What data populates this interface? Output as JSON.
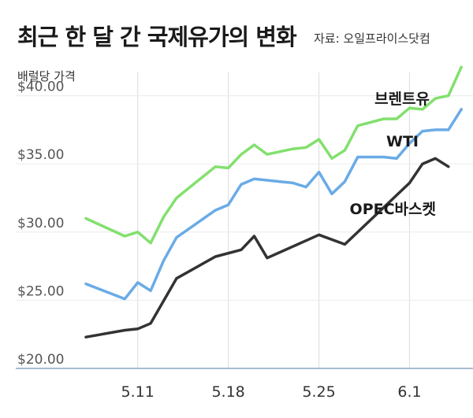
{
  "header": {
    "title": "최근 한 달 간 국제유가의 변화",
    "source": "자료: 오일프라이스닷컴",
    "unit": "배럴당 가격"
  },
  "chart_data": {
    "type": "line",
    "title": "최근 한 달 간 국제유가의 변화",
    "ylabel": "배럴당 가격",
    "ylim": [
      20,
      42
    ],
    "yticks": [
      20,
      25,
      30,
      35,
      40
    ],
    "ytick_labels": [
      "$20.00",
      "$25.00",
      "$30.00",
      "$35.00",
      "$40.00"
    ],
    "xlim": [
      0,
      29.5
    ],
    "xtick_positions": [
      4,
      11,
      18,
      25
    ],
    "xtick_labels": [
      "5.11",
      "5.18",
      "5.25",
      "6.1"
    ],
    "grid": "vertical",
    "colors": {
      "브렌트유": "#82e06e",
      "WTI": "#6aabe6",
      "OPEC바스켓": "#333333"
    },
    "series": [
      {
        "name": "브렌트유",
        "x": [
          0,
          3,
          4,
          5,
          6,
          7,
          10,
          11,
          12,
          13,
          14,
          15,
          16,
          17,
          18,
          19,
          20,
          21,
          23,
          24,
          25,
          26,
          27,
          28,
          29
        ],
        "y": [
          31.0,
          29.7,
          30.0,
          29.2,
          31.1,
          32.5,
          34.8,
          34.7,
          35.7,
          36.4,
          35.7,
          35.9,
          36.1,
          36.2,
          36.8,
          35.4,
          36.0,
          37.8,
          38.3,
          38.3,
          39.1,
          39.0,
          39.8,
          40.0,
          42.1
        ]
      },
      {
        "name": "WTI",
        "x": [
          0,
          3,
          4,
          5,
          6,
          7,
          10,
          11,
          12,
          13,
          14,
          15,
          16,
          17,
          18,
          19,
          20,
          21,
          23,
          24,
          25,
          26,
          27,
          28,
          29
        ],
        "y": [
          26.2,
          25.1,
          26.3,
          25.7,
          27.9,
          29.6,
          31.6,
          32.0,
          33.5,
          33.9,
          33.8,
          33.7,
          33.6,
          33.3,
          34.4,
          32.8,
          33.7,
          35.5,
          35.5,
          35.4,
          36.5,
          37.4,
          37.5,
          37.5,
          39.0
        ]
      },
      {
        "name": "OPEC바스켓",
        "x": [
          0,
          3,
          4,
          5,
          7,
          10,
          12,
          13,
          14,
          18,
          20,
          25,
          26,
          27,
          28
        ],
        "y": [
          22.3,
          22.8,
          22.9,
          23.3,
          26.6,
          28.2,
          28.7,
          29.7,
          28.1,
          29.8,
          29.1,
          33.6,
          35.0,
          35.4,
          34.8
        ]
      }
    ]
  }
}
